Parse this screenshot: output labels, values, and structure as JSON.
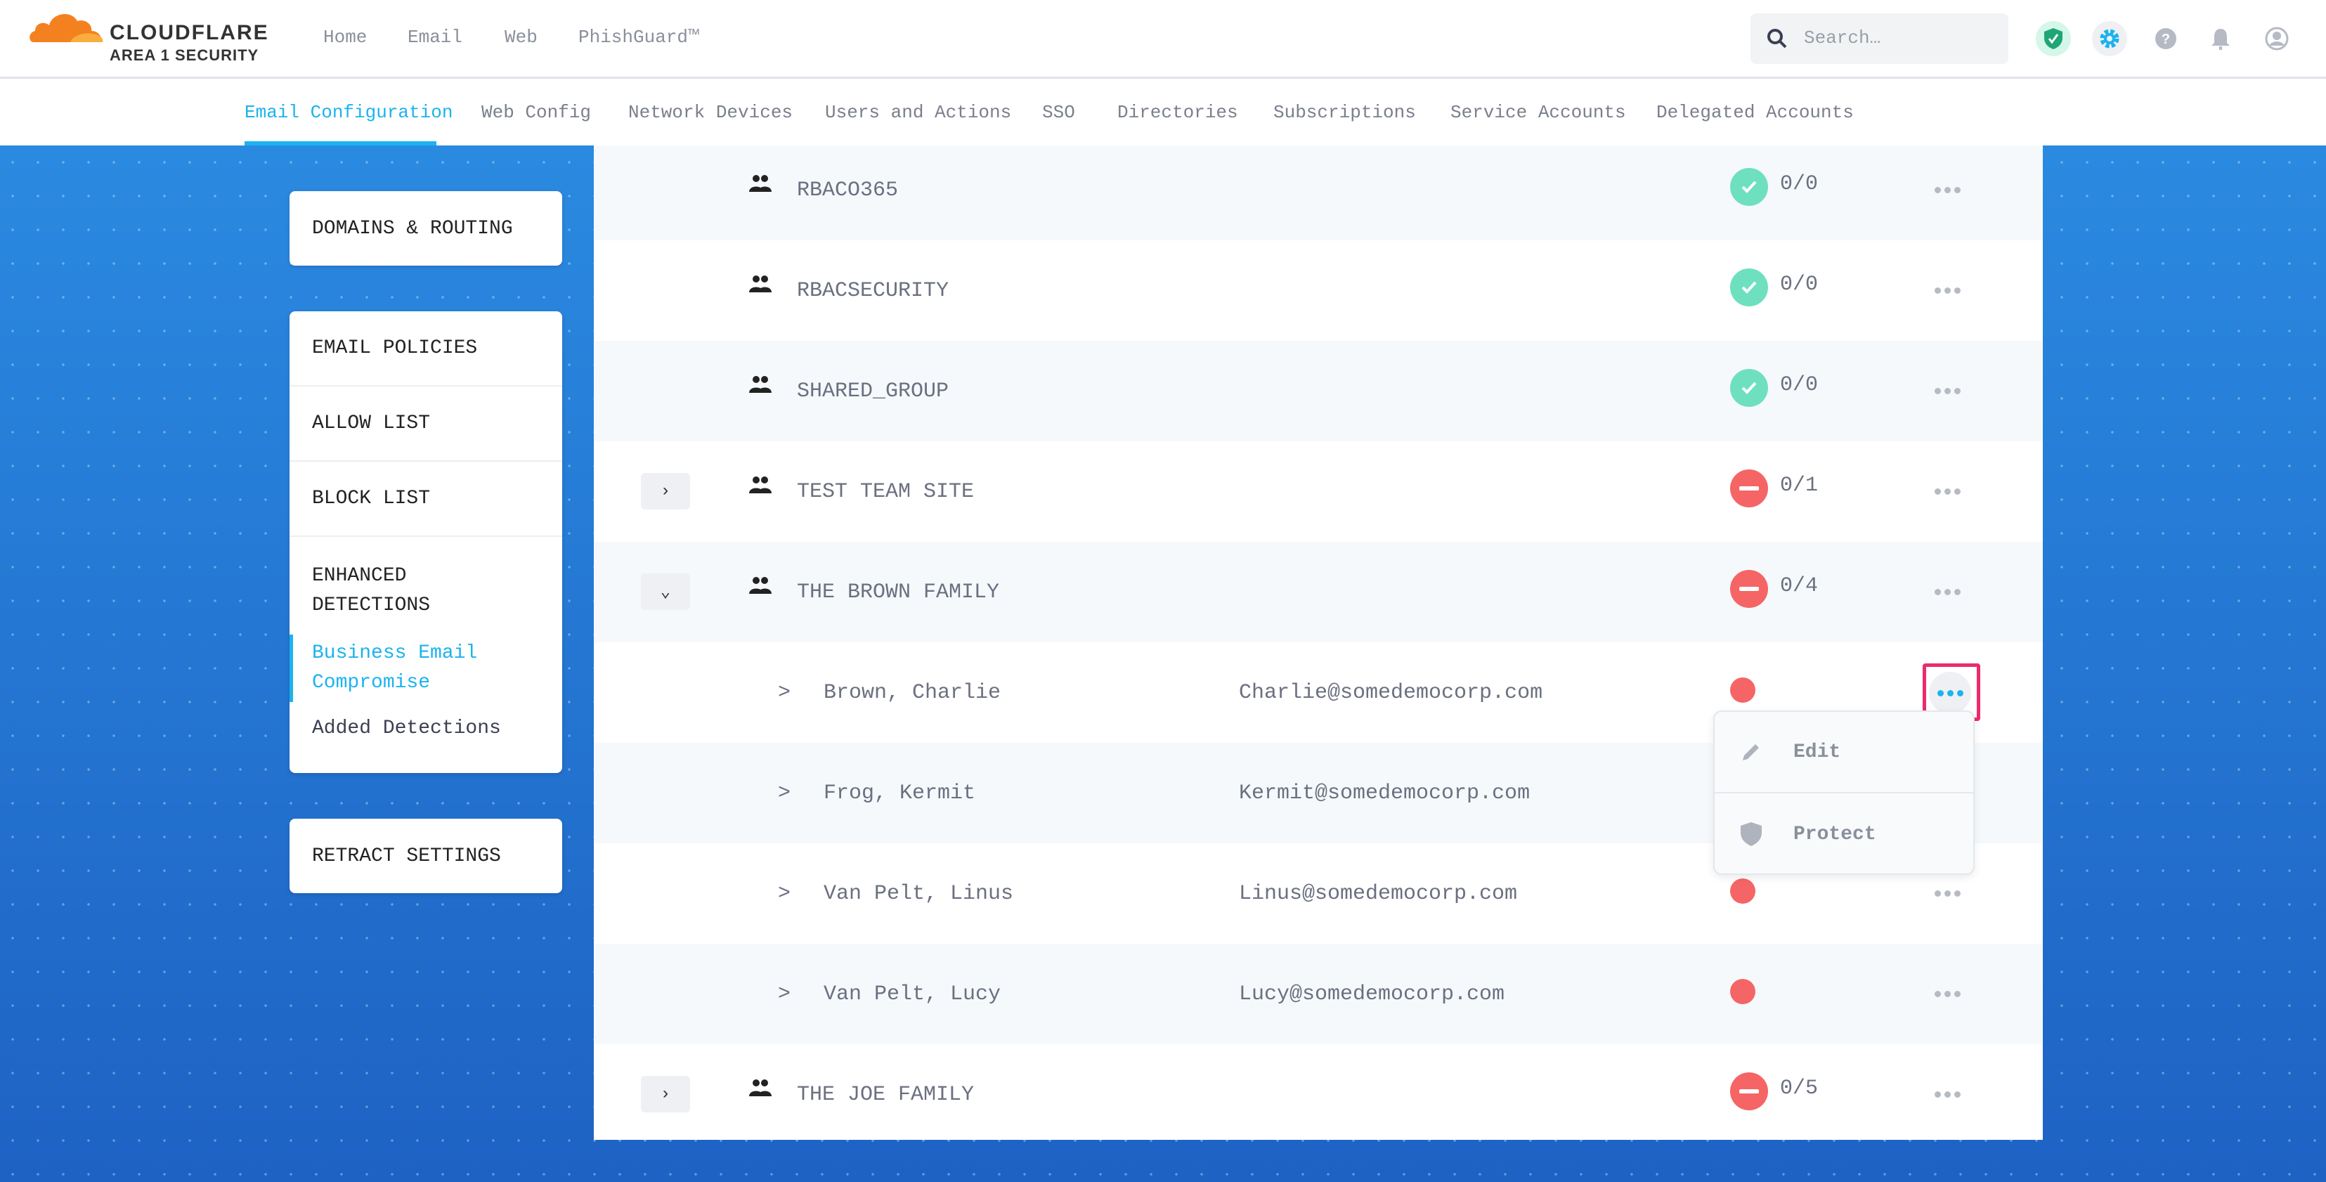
{
  "brand": {
    "name": "CLOUDFLARE",
    "product": "AREA 1 SECURITY"
  },
  "topnav": [
    "Home",
    "Email",
    "Web",
    "PhishGuard™"
  ],
  "search": {
    "placeholder": "Search…"
  },
  "header_icons": [
    "shield-check-icon",
    "gear-icon",
    "help-icon",
    "bell-icon",
    "user-icon"
  ],
  "tabs": [
    "Email Configuration",
    "Web Config",
    "Network Devices",
    "Users and Actions",
    "SSO",
    "Directories",
    "Subscriptions",
    "Service Accounts",
    "Delegated Accounts"
  ],
  "active_tab": "Email Configuration",
  "sidebar": {
    "domains": "DOMAINS & ROUTING",
    "policies": "EMAIL POLICIES",
    "allow": "ALLOW LIST",
    "block": "BLOCK LIST",
    "enhanced": "ENHANCED DETECTIONS",
    "bec": "Business Email Compromise",
    "added": "Added Detections",
    "retract": "RETRACT SETTINGS"
  },
  "groups": [
    {
      "name": "RBACO365",
      "status": "ok",
      "count": "0/0"
    },
    {
      "name": "RBACSECURITY",
      "status": "ok",
      "count": "0/0"
    },
    {
      "name": "SHARED_GROUP",
      "status": "ok",
      "count": "0/0"
    },
    {
      "name": "TEST TEAM SITE",
      "status": "blocked",
      "count": "0/1",
      "expand": "›"
    },
    {
      "name": "THE BROWN FAMILY",
      "status": "blocked",
      "count": "0/4",
      "expand": "⌄"
    }
  ],
  "members": [
    {
      "name": "Brown, Charlie",
      "email": "Charlie@somedemocorp.com"
    },
    {
      "name": "Frog, Kermit",
      "email": "Kermit@somedemocorp.com"
    },
    {
      "name": "Van Pelt, Linus",
      "email": "Linus@somedemocorp.com"
    },
    {
      "name": "Van Pelt, Lucy",
      "email": "Lucy@somedemocorp.com"
    }
  ],
  "member_arrow": ">",
  "last_group": {
    "name": "THE JOE FAMILY",
    "status": "blocked",
    "count": "0/5",
    "expand": "›"
  },
  "menu": {
    "edit": "Edit",
    "protect": "Protect"
  },
  "colors": {
    "accent": "#1cb3ee",
    "ok": "#6ee0c0",
    "blocked": "#f56565",
    "highlight": "#ec2b6e"
  }
}
